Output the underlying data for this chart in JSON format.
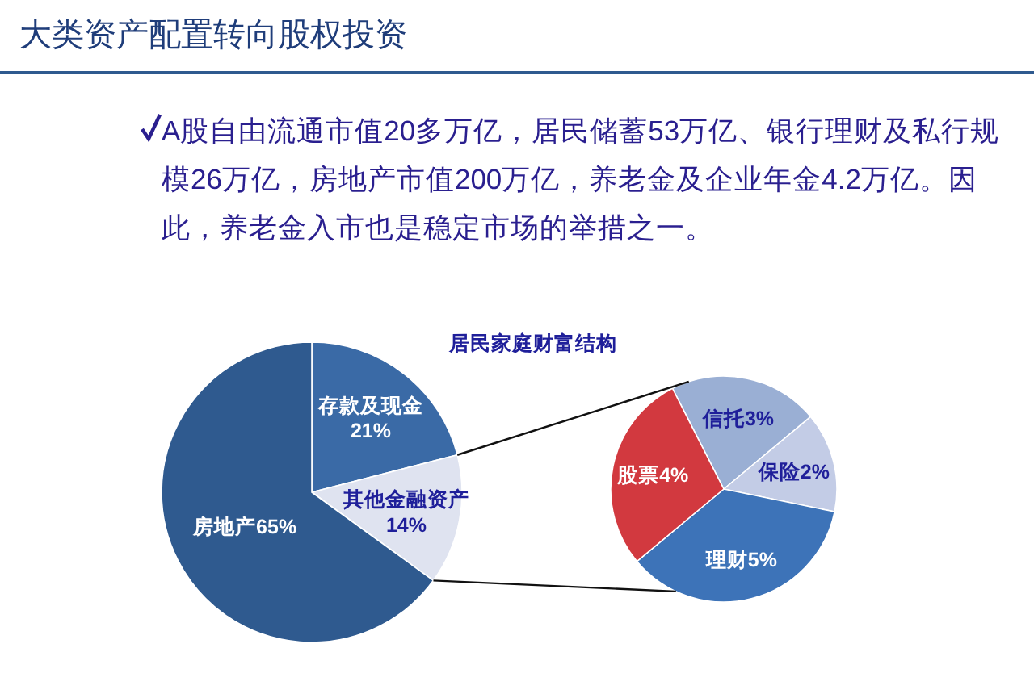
{
  "chart_data": [
    {
      "type": "pie",
      "title": "居民家庭财富结构",
      "categories": [
        "存款及现金",
        "其他金融资产",
        "房地产"
      ],
      "values": [
        21,
        14,
        65
      ],
      "colors": [
        "#3a6aa6",
        "#dfe3f0",
        "#2f5a8f"
      ],
      "value_labels": [
        "21%",
        "14%",
        "65%"
      ],
      "annotations": [
        "大类资产配置转向股权投资",
        "A股自由流通市值20多万亿，居民储蓄53万亿、银行理财及私行规模26万亿，房地产市值200万亿，养老金及企业年金4.2万亿。因此，养老金入市也是稳定市场的举措之一。"
      ]
    },
    {
      "type": "pie",
      "categories": [
        "信托",
        "保险",
        "理财",
        "股票"
      ],
      "values": [
        3,
        2,
        5,
        4
      ],
      "colors": [
        "#9aafd4",
        "#c3cce6",
        "#3d73b8",
        "#d2393f"
      ],
      "value_labels": [
        "3%",
        "2%",
        "5%",
        "4%"
      ]
    }
  ]
}
